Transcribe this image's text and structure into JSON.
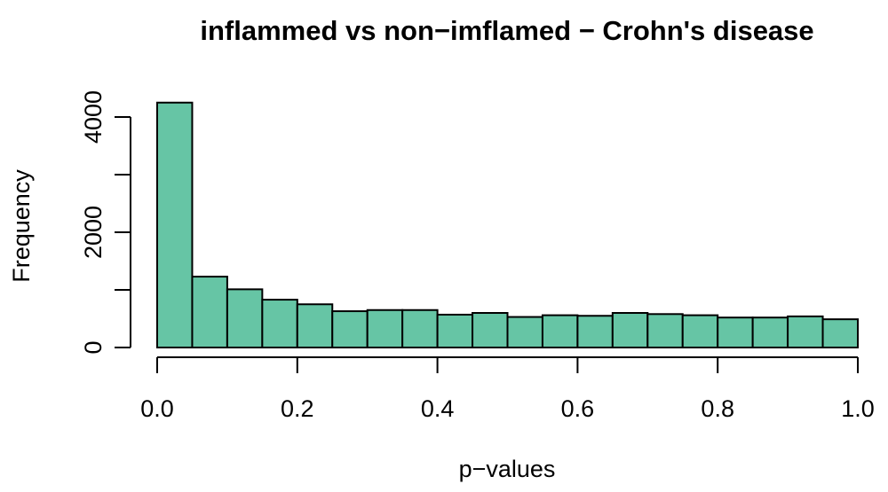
{
  "chart_data": {
    "type": "histogram",
    "title": "inflammed vs non−imflamed − Crohn's disease",
    "xlabel": "p−values",
    "ylabel": "Frequency",
    "bar_color": "#66c5a5",
    "xlim": [
      0,
      1
    ],
    "ylim": [
      0,
      4000
    ],
    "x_ticks": [
      0.0,
      0.2,
      0.4,
      0.6,
      0.8,
      1.0
    ],
    "x_tick_labels": [
      "0.0",
      "0.2",
      "0.4",
      "0.6",
      "0.8",
      "1.0"
    ],
    "y_ticks": [
      0,
      1000,
      2000,
      3000,
      4000
    ],
    "y_tick_labels": [
      "0",
      "",
      "2000",
      "",
      "4000"
    ],
    "bins": [
      {
        "start": 0.0,
        "end": 0.05,
        "count": 4250
      },
      {
        "start": 0.05,
        "end": 0.1,
        "count": 1230
      },
      {
        "start": 0.1,
        "end": 0.15,
        "count": 1010
      },
      {
        "start": 0.15,
        "end": 0.2,
        "count": 830
      },
      {
        "start": 0.2,
        "end": 0.25,
        "count": 750
      },
      {
        "start": 0.25,
        "end": 0.3,
        "count": 630
      },
      {
        "start": 0.3,
        "end": 0.35,
        "count": 650
      },
      {
        "start": 0.35,
        "end": 0.4,
        "count": 650
      },
      {
        "start": 0.4,
        "end": 0.45,
        "count": 570
      },
      {
        "start": 0.45,
        "end": 0.5,
        "count": 600
      },
      {
        "start": 0.5,
        "end": 0.55,
        "count": 530
      },
      {
        "start": 0.55,
        "end": 0.6,
        "count": 560
      },
      {
        "start": 0.6,
        "end": 0.65,
        "count": 550
      },
      {
        "start": 0.65,
        "end": 0.7,
        "count": 600
      },
      {
        "start": 0.7,
        "end": 0.75,
        "count": 580
      },
      {
        "start": 0.75,
        "end": 0.8,
        "count": 560
      },
      {
        "start": 0.8,
        "end": 0.85,
        "count": 520
      },
      {
        "start": 0.85,
        "end": 0.9,
        "count": 520
      },
      {
        "start": 0.9,
        "end": 0.95,
        "count": 540
      },
      {
        "start": 0.95,
        "end": 1.0,
        "count": 490
      }
    ]
  }
}
